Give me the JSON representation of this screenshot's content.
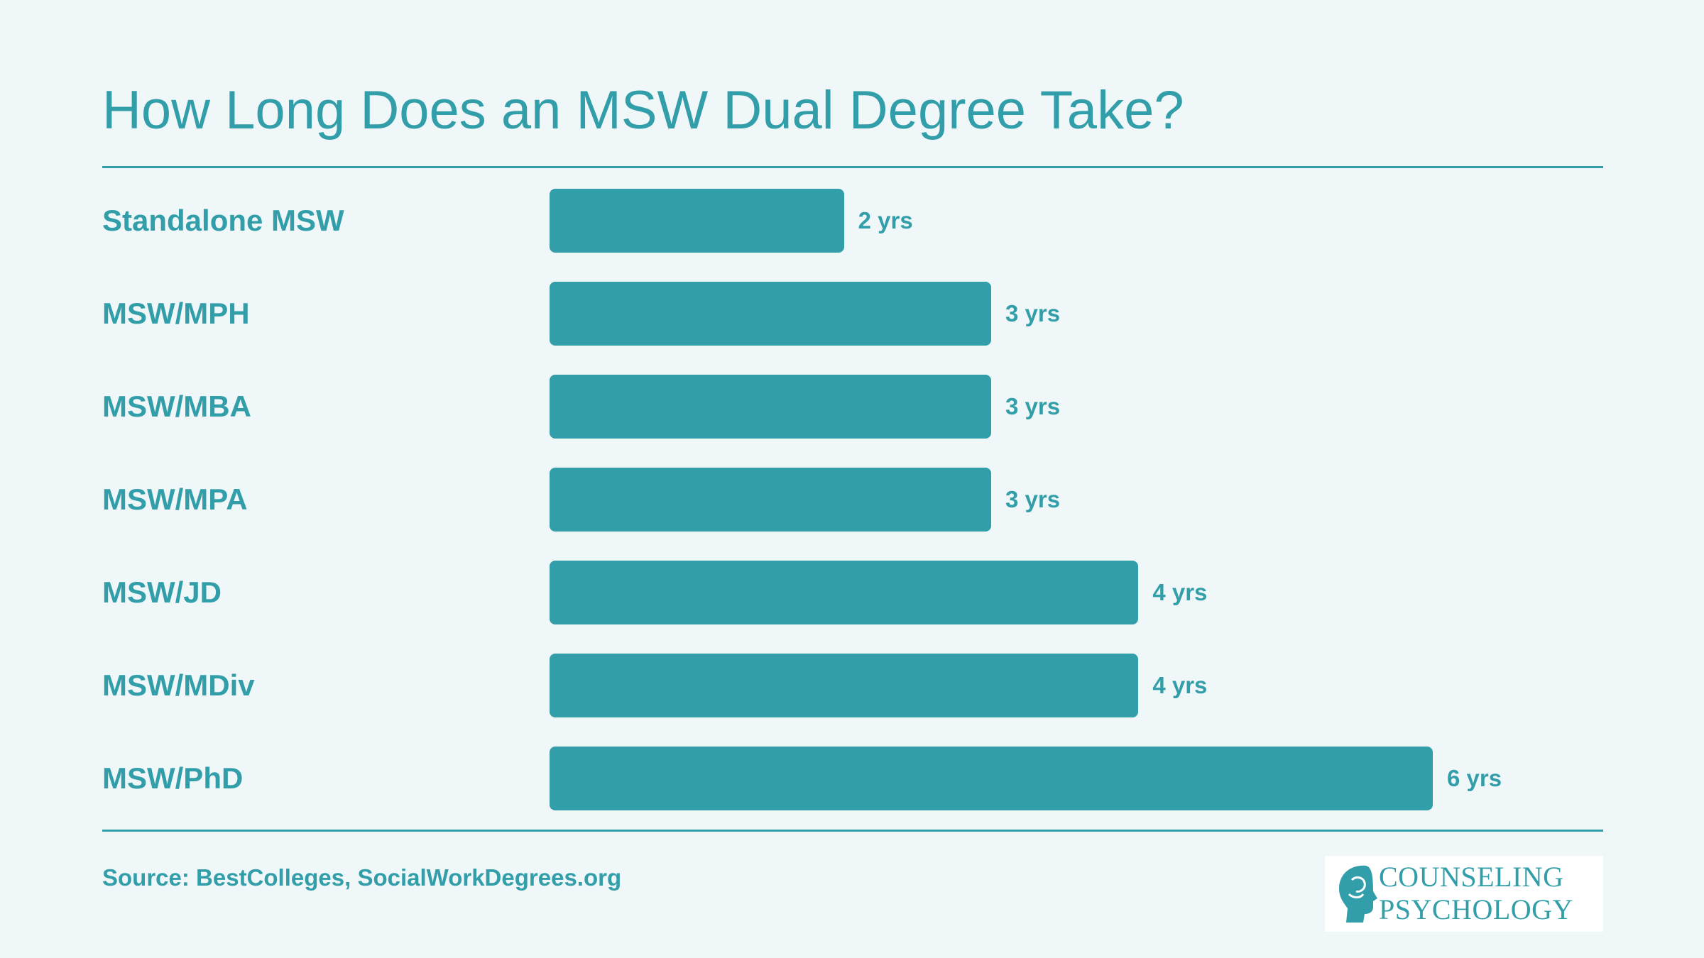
{
  "title": "How Long Does an MSW Dual Degree Take?",
  "source": "Source: BestColleges, SocialWorkDegrees.org",
  "logo": {
    "line1": "COUNSELING",
    "line2": "PSYCHOLOGY",
    "icon": "head-profile-icon"
  },
  "colors": {
    "accent": "#329ea9",
    "background": "#eff7f8"
  },
  "chart_data": {
    "type": "bar",
    "orientation": "horizontal",
    "categories": [
      "Standalone MSW",
      "MSW/MPH",
      "MSW/MBA",
      "MSW/MPA",
      "MSW/JD",
      "MSW/MDiv",
      "MSW/PhD"
    ],
    "values": [
      2,
      3,
      3,
      3,
      4,
      4,
      6
    ],
    "value_labels": [
      "2 yrs",
      "3 yrs",
      "3 yrs",
      "3 yrs",
      "4 yrs",
      "4 yrs",
      "6 yrs"
    ],
    "xlim": [
      0,
      6
    ],
    "grid": false,
    "legend": "none"
  }
}
